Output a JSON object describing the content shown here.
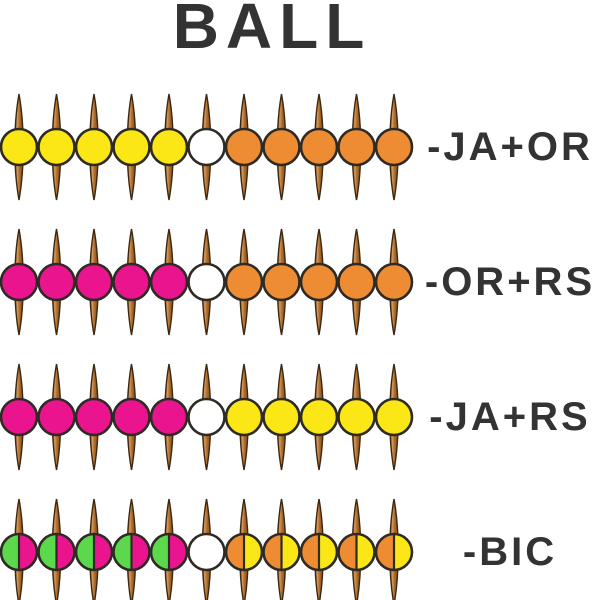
{
  "title": "BALL",
  "palette": {
    "yellow": "#FBE716",
    "orange": "#EE8C34",
    "rose": "#E9148E",
    "green": "#5CD84C",
    "white": "#FFFFFF"
  },
  "pin_colors": {
    "fill_mid": "#B06C2B",
    "fill_light": "#D29A62",
    "fill_dark": "#7C4A16",
    "stroke": "#3C2811"
  },
  "ball_stroke_color": "#2E2A24",
  "text_color": "#333333",
  "rows": [
    {
      "label": "-JA+OR",
      "balls": [
        "yellow",
        "yellow",
        "yellow",
        "yellow",
        "yellow",
        "white",
        "orange",
        "orange",
        "orange",
        "orange",
        "orange"
      ]
    },
    {
      "label": "-OR+RS",
      "balls": [
        "rose",
        "rose",
        "rose",
        "rose",
        "rose",
        "white",
        "orange",
        "orange",
        "orange",
        "orange",
        "orange"
      ]
    },
    {
      "label": "-JA+RS",
      "balls": [
        "rose",
        "rose",
        "rose",
        "rose",
        "rose",
        "white",
        "yellow",
        "yellow",
        "yellow",
        "yellow",
        "yellow"
      ]
    },
    {
      "label": "-BIC",
      "balls": [
        "green/rose",
        "green/rose",
        "green/rose",
        "green/rose",
        "green/rose",
        "white",
        "orange/yellow",
        "orange/yellow",
        "orange/yellow",
        "orange/yellow",
        "orange/yellow"
      ]
    }
  ]
}
